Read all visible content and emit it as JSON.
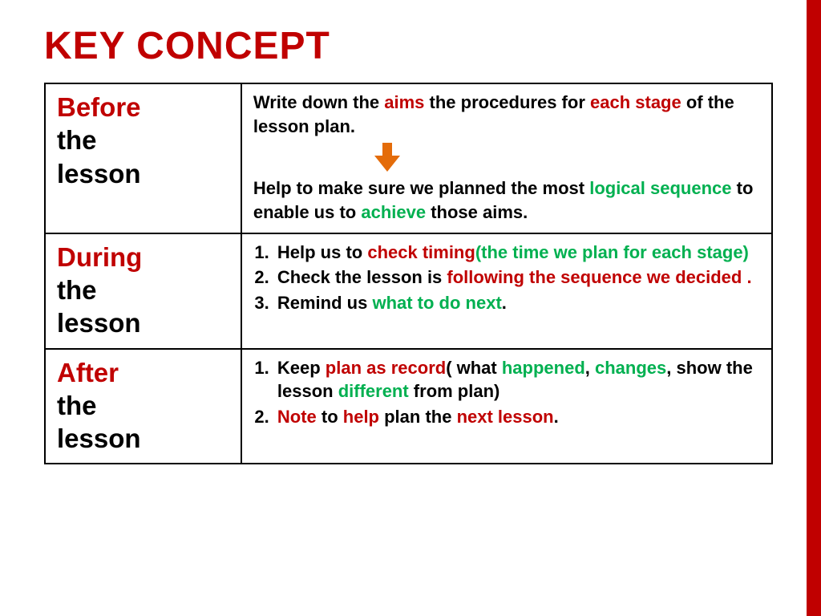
{
  "colors": {
    "title": "#c00000",
    "accent_bar": "#c00000",
    "text": "#000000",
    "red": "#c00000",
    "green": "#00b050",
    "arrow": "#e46c0a",
    "border": "#000000",
    "background": "#ffffff"
  },
  "typography": {
    "title_fontsize": 48,
    "left_col_fontsize": 33,
    "right_col_fontsize": 22,
    "weight": 900
  },
  "title": "KEY CONCEPT",
  "rows": [
    {
      "left_red": "Before",
      "left_black": "the lesson",
      "right_html": "Write down the <span class=hl data-c=red>aims</span> the procedures for <span class=hl data-c=red>each stage</span> of the lesson plan.||ARROW||Help to make sure we planned the most <span class=hl data-c=green>logical sequence</span> to enable us to <span class=hl data-c=green>achieve</span> those aims."
    },
    {
      "left_red": "During",
      "left_black": "the lesson",
      "right_list": [
        "Help us to <span class=hl data-c=red>check timing</span><span class=hl data-c=green>(the time we plan for each stage)</span>",
        "Check the lesson is <span class=hl data-c=red>following the sequence we decided .</span>",
        "Remind us <span class=hl data-c=green>what to do next</span>."
      ]
    },
    {
      "left_red": "After",
      "left_black": "the lesson",
      "right_list": [
        "Keep <span class=hl data-c=red>plan as record</span>( what <span class=hl data-c=green>happened</span>, <span class=hl data-c=green>changes</span>, show the lesson <span class=hl data-c=green>different</span> from plan)",
        "<span class=hl data-c=red>Note</span> to <span class=hl data-c=red>help</span> plan the <span class=hl data-c=red>next lesson</span>."
      ]
    }
  ]
}
